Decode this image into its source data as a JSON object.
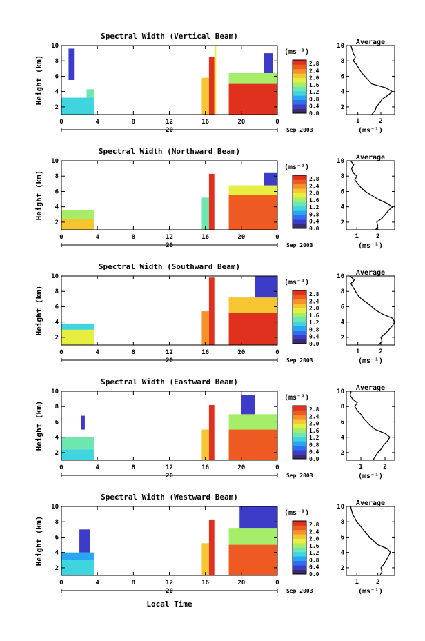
{
  "figure": {
    "x_axis_title": "Local Time",
    "date_day": "20",
    "date_label": "Sep 2003",
    "colorbar_unit": "(ms⁻¹)",
    "profile_title": "Average"
  },
  "chart_data": [
    {
      "type": "heatmap",
      "title": "Spectral Width (Vertical Beam)",
      "ylabel": "Height (km)",
      "x_ticks": [
        "0",
        "4",
        "8",
        "12",
        "16",
        "20",
        "0"
      ],
      "y_ticks": [
        "2",
        "4",
        "6",
        "8",
        "10"
      ],
      "xlim": [
        0,
        24
      ],
      "ylim": [
        1,
        10
      ],
      "colorbar_ticks": [
        "0.0",
        "0.4",
        "0.8",
        "1.2",
        "1.6",
        "2.0",
        "2.4",
        "2.8"
      ],
      "colorbar_range": [
        0,
        3.0
      ],
      "data_blocks": [
        {
          "t0": 0.0,
          "t1": 3.6,
          "h0": 1.0,
          "h1": 3.2,
          "level": 1.0
        },
        {
          "t0": 2.8,
          "t1": 3.6,
          "h0": 3.2,
          "h1": 4.3,
          "level": 1.3
        },
        {
          "t0": 0.8,
          "t1": 1.4,
          "h0": 5.5,
          "h1": 9.6,
          "level": 0.3
        },
        {
          "t0": 15.6,
          "t1": 16.4,
          "h0": 1.0,
          "h1": 5.8,
          "level": 2.2
        },
        {
          "t0": 16.4,
          "t1": 17.0,
          "h0": 1.0,
          "h1": 8.5,
          "level": 2.9
        },
        {
          "t0": 17.0,
          "t1": 17.2,
          "h0": 1.0,
          "h1": 10.0,
          "level": 1.8
        },
        {
          "t0": 18.6,
          "t1": 24.0,
          "h0": 1.0,
          "h1": 5.0,
          "level": 2.8
        },
        {
          "t0": 18.6,
          "t1": 24.0,
          "h0": 5.0,
          "h1": 6.4,
          "level": 1.7
        },
        {
          "t0": 22.5,
          "t1": 23.5,
          "h0": 6.4,
          "h1": 9.0,
          "level": 0.4
        }
      ],
      "profile": {
        "x_ticks": [
          "1",
          "2"
        ],
        "xlim": [
          0.5,
          2.6
        ],
        "ylim": [
          1,
          10
        ],
        "y_ticks": [
          "2",
          "4",
          "6",
          "8",
          "10"
        ],
        "xlabel": "(ms⁻¹)",
        "heights": [
          1.0,
          1.5,
          2.0,
          2.5,
          3.0,
          3.5,
          4.0,
          4.5,
          5.0,
          5.5,
          6.0,
          6.5,
          7.0,
          7.5,
          8.0,
          8.5,
          9.0,
          9.5,
          10.0
        ],
        "values": [
          1.6,
          1.75,
          1.8,
          1.95,
          2.05,
          2.3,
          2.5,
          2.2,
          1.6,
          1.45,
          1.3,
          1.15,
          1.05,
          0.95,
          0.8,
          0.9,
          0.8,
          0.75,
          0.7
        ]
      }
    },
    {
      "type": "heatmap",
      "title": "Spectral Width (Northward Beam)",
      "ylabel": "Height (km)",
      "x_ticks": [
        "0",
        "4",
        "8",
        "12",
        "16",
        "20",
        "0"
      ],
      "y_ticks": [
        "2",
        "4",
        "6",
        "8",
        "10"
      ],
      "xlim": [
        0,
        24
      ],
      "ylim": [
        1,
        10
      ],
      "colorbar_ticks": [
        "0.0",
        "0.4",
        "0.8",
        "1.2",
        "1.6",
        "2.0",
        "2.4",
        "2.8"
      ],
      "colorbar_range": [
        0,
        3.0
      ],
      "data_blocks": [
        {
          "t0": 0.0,
          "t1": 3.6,
          "h0": 1.0,
          "h1": 2.4,
          "level": 2.2
        },
        {
          "t0": 0.0,
          "t1": 3.6,
          "h0": 2.4,
          "h1": 3.6,
          "level": 1.5
        },
        {
          "t0": 15.6,
          "t1": 16.4,
          "h0": 1.0,
          "h1": 5.2,
          "level": 1.4
        },
        {
          "t0": 16.4,
          "t1": 17.0,
          "h0": 1.0,
          "h1": 8.3,
          "level": 2.9
        },
        {
          "t0": 18.6,
          "t1": 24.0,
          "h0": 1.0,
          "h1": 5.6,
          "level": 2.7
        },
        {
          "t0": 18.6,
          "t1": 24.0,
          "h0": 5.6,
          "h1": 6.8,
          "level": 1.9
        },
        {
          "t0": 22.5,
          "t1": 24.0,
          "h0": 6.8,
          "h1": 8.4,
          "level": 0.4
        }
      ],
      "profile": {
        "x_ticks": [
          "1",
          "2"
        ],
        "xlim": [
          0.5,
          2.8
        ],
        "ylim": [
          1,
          10
        ],
        "y_ticks": [
          "2",
          "4",
          "6",
          "8",
          "10"
        ],
        "xlabel": "(ms⁻¹)",
        "heights": [
          1.0,
          1.5,
          2.0,
          2.5,
          3.0,
          3.5,
          4.0,
          4.5,
          5.0,
          5.5,
          6.0,
          6.5,
          7.0,
          7.5,
          8.0,
          8.5,
          9.0,
          9.5,
          10.0
        ],
        "values": [
          1.9,
          2.0,
          1.95,
          2.2,
          2.35,
          2.5,
          2.7,
          2.4,
          2.0,
          1.7,
          1.4,
          1.2,
          1.05,
          0.9,
          1.0,
          0.8,
          0.75,
          0.85,
          0.7
        ]
      }
    },
    {
      "type": "heatmap",
      "title": "Spectral Width (Southward Beam)",
      "ylabel": "Height (km)",
      "x_ticks": [
        "0",
        "4",
        "8",
        "12",
        "16",
        "20",
        "0"
      ],
      "y_ticks": [
        "2",
        "4",
        "6",
        "8",
        "10"
      ],
      "xlim": [
        0,
        24
      ],
      "ylim": [
        1,
        10
      ],
      "colorbar_ticks": [
        "0.0",
        "0.4",
        "0.8",
        "1.2",
        "1.6",
        "2.0",
        "2.4",
        "2.8"
      ],
      "colorbar_range": [
        0,
        3.0
      ],
      "data_blocks": [
        {
          "t0": 0.0,
          "t1": 3.6,
          "h0": 1.0,
          "h1": 3.0,
          "level": 1.8
        },
        {
          "t0": 0.0,
          "t1": 3.6,
          "h0": 3.0,
          "h1": 3.8,
          "level": 1.2
        },
        {
          "t0": 15.6,
          "t1": 16.4,
          "h0": 1.0,
          "h1": 5.4,
          "level": 2.3
        },
        {
          "t0": 16.4,
          "t1": 17.0,
          "h0": 1.0,
          "h1": 9.8,
          "level": 2.9
        },
        {
          "t0": 18.6,
          "t1": 24.0,
          "h0": 1.0,
          "h1": 5.2,
          "level": 2.8
        },
        {
          "t0": 18.6,
          "t1": 24.0,
          "h0": 5.2,
          "h1": 7.2,
          "level": 2.0
        },
        {
          "t0": 21.5,
          "t1": 24.0,
          "h0": 7.2,
          "h1": 10.0,
          "level": 0.3
        }
      ],
      "profile": {
        "x_ticks": [
          "1",
          "2"
        ],
        "xlim": [
          0.5,
          2.6
        ],
        "ylim": [
          1,
          10
        ],
        "y_ticks": [
          "2",
          "4",
          "6",
          "8",
          "10"
        ],
        "xlabel": "(ms⁻¹)",
        "heights": [
          1.0,
          1.5,
          2.0,
          2.5,
          3.0,
          3.5,
          4.0,
          4.5,
          5.0,
          5.5,
          6.0,
          6.5,
          7.0,
          7.5,
          8.0,
          8.5,
          9.0,
          9.5,
          10.0
        ],
        "values": [
          1.9,
          2.05,
          2.0,
          2.2,
          2.35,
          2.5,
          2.6,
          2.5,
          2.1,
          1.8,
          1.6,
          1.4,
          1.15,
          1.0,
          0.9,
          0.8,
          0.7,
          0.85,
          0.65
        ]
      }
    },
    {
      "type": "heatmap",
      "title": "Spectral Width (Eastward Beam)",
      "ylabel": "Height (km)",
      "x_ticks": [
        "0",
        "4",
        "8",
        "12",
        "16",
        "20",
        "0"
      ],
      "y_ticks": [
        "2",
        "4",
        "6",
        "8",
        "10"
      ],
      "xlim": [
        0,
        24
      ],
      "ylim": [
        1,
        10
      ],
      "colorbar_ticks": [
        "0.0",
        "0.4",
        "0.8",
        "1.2",
        "1.6",
        "2.0",
        "2.4",
        "2.8"
      ],
      "colorbar_range": [
        0,
        3.0
      ],
      "data_blocks": [
        {
          "t0": 0.0,
          "t1": 3.6,
          "h0": 1.0,
          "h1": 2.4,
          "level": 1.1
        },
        {
          "t0": 0.0,
          "t1": 3.6,
          "h0": 2.4,
          "h1": 4.0,
          "level": 1.3
        },
        {
          "t0": 2.2,
          "t1": 2.6,
          "h0": 5.0,
          "h1": 6.8,
          "level": 0.3
        },
        {
          "t0": 15.6,
          "t1": 16.4,
          "h0": 1.0,
          "h1": 5.0,
          "level": 2.1
        },
        {
          "t0": 16.4,
          "t1": 17.0,
          "h0": 1.0,
          "h1": 8.2,
          "level": 2.8
        },
        {
          "t0": 18.6,
          "t1": 24.0,
          "h0": 1.0,
          "h1": 5.0,
          "level": 2.7
        },
        {
          "t0": 18.6,
          "t1": 24.0,
          "h0": 5.0,
          "h1": 7.0,
          "level": 1.6
        },
        {
          "t0": 20.0,
          "t1": 21.5,
          "h0": 7.0,
          "h1": 9.5,
          "level": 0.4
        }
      ],
      "profile": {
        "x_ticks": [
          "1",
          "2"
        ],
        "xlim": [
          0.4,
          2.4
        ],
        "ylim": [
          1,
          10
        ],
        "y_ticks": [
          "2",
          "4",
          "6",
          "8",
          "10"
        ],
        "xlabel": "(ms⁻¹)",
        "heights": [
          1.0,
          1.5,
          2.0,
          2.5,
          3.0,
          3.5,
          4.0,
          4.5,
          5.0,
          5.5,
          6.0,
          6.5,
          7.0,
          7.5,
          8.0,
          8.5,
          9.0,
          9.5,
          10.0
        ],
        "values": [
          1.5,
          1.6,
          1.7,
          1.85,
          1.95,
          2.1,
          2.2,
          2.0,
          1.6,
          1.4,
          1.25,
          1.1,
          1.0,
          0.85,
          0.75,
          0.85,
          0.65,
          0.55,
          0.6
        ]
      }
    },
    {
      "type": "heatmap",
      "title": "Spectral Width (Westward Beam)",
      "ylabel": "Height (km)",
      "x_ticks": [
        "0",
        "4",
        "8",
        "12",
        "16",
        "20",
        "0"
      ],
      "y_ticks": [
        "2",
        "4",
        "6",
        "8",
        "10"
      ],
      "xlim": [
        0,
        24
      ],
      "ylim": [
        1,
        10
      ],
      "colorbar_ticks": [
        "0.0",
        "0.4",
        "0.8",
        "1.2",
        "1.6",
        "2.0",
        "2.4",
        "2.8"
      ],
      "colorbar_range": [
        0,
        3.0
      ],
      "data_blocks": [
        {
          "t0": 0.0,
          "t1": 3.6,
          "h0": 1.0,
          "h1": 3.0,
          "level": 1.2
        },
        {
          "t0": 0.0,
          "t1": 3.6,
          "h0": 3.0,
          "h1": 4.0,
          "level": 0.9
        },
        {
          "t0": 2.0,
          "t1": 3.2,
          "h0": 4.0,
          "h1": 7.0,
          "level": 0.3
        },
        {
          "t0": 15.6,
          "t1": 16.4,
          "h0": 1.0,
          "h1": 5.2,
          "level": 2.2
        },
        {
          "t0": 16.4,
          "t1": 17.0,
          "h0": 1.0,
          "h1": 8.3,
          "level": 2.9
        },
        {
          "t0": 18.6,
          "t1": 24.0,
          "h0": 1.0,
          "h1": 5.0,
          "level": 2.7
        },
        {
          "t0": 18.6,
          "t1": 24.0,
          "h0": 5.0,
          "h1": 7.2,
          "level": 1.5
        },
        {
          "t0": 19.8,
          "t1": 24.0,
          "h0": 7.2,
          "h1": 10.0,
          "level": 0.3
        }
      ],
      "profile": {
        "x_ticks": [
          "1",
          "2"
        ],
        "xlim": [
          0.5,
          2.8
        ],
        "ylim": [
          1,
          10
        ],
        "y_ticks": [
          "2",
          "4",
          "6",
          "8",
          "10"
        ],
        "xlabel": "(ms⁻¹)",
        "heights": [
          1.0,
          1.5,
          2.0,
          2.5,
          3.0,
          3.5,
          4.0,
          4.5,
          5.0,
          5.5,
          6.0,
          6.5,
          7.0,
          7.5,
          8.0,
          8.5,
          9.0,
          9.5,
          10.0
        ],
        "values": [
          2.1,
          2.2,
          2.15,
          2.3,
          2.4,
          2.5,
          2.6,
          2.45,
          2.0,
          1.8,
          1.6,
          1.45,
          1.3,
          1.15,
          1.0,
          0.9,
          0.8,
          0.75,
          0.7
        ]
      }
    }
  ]
}
